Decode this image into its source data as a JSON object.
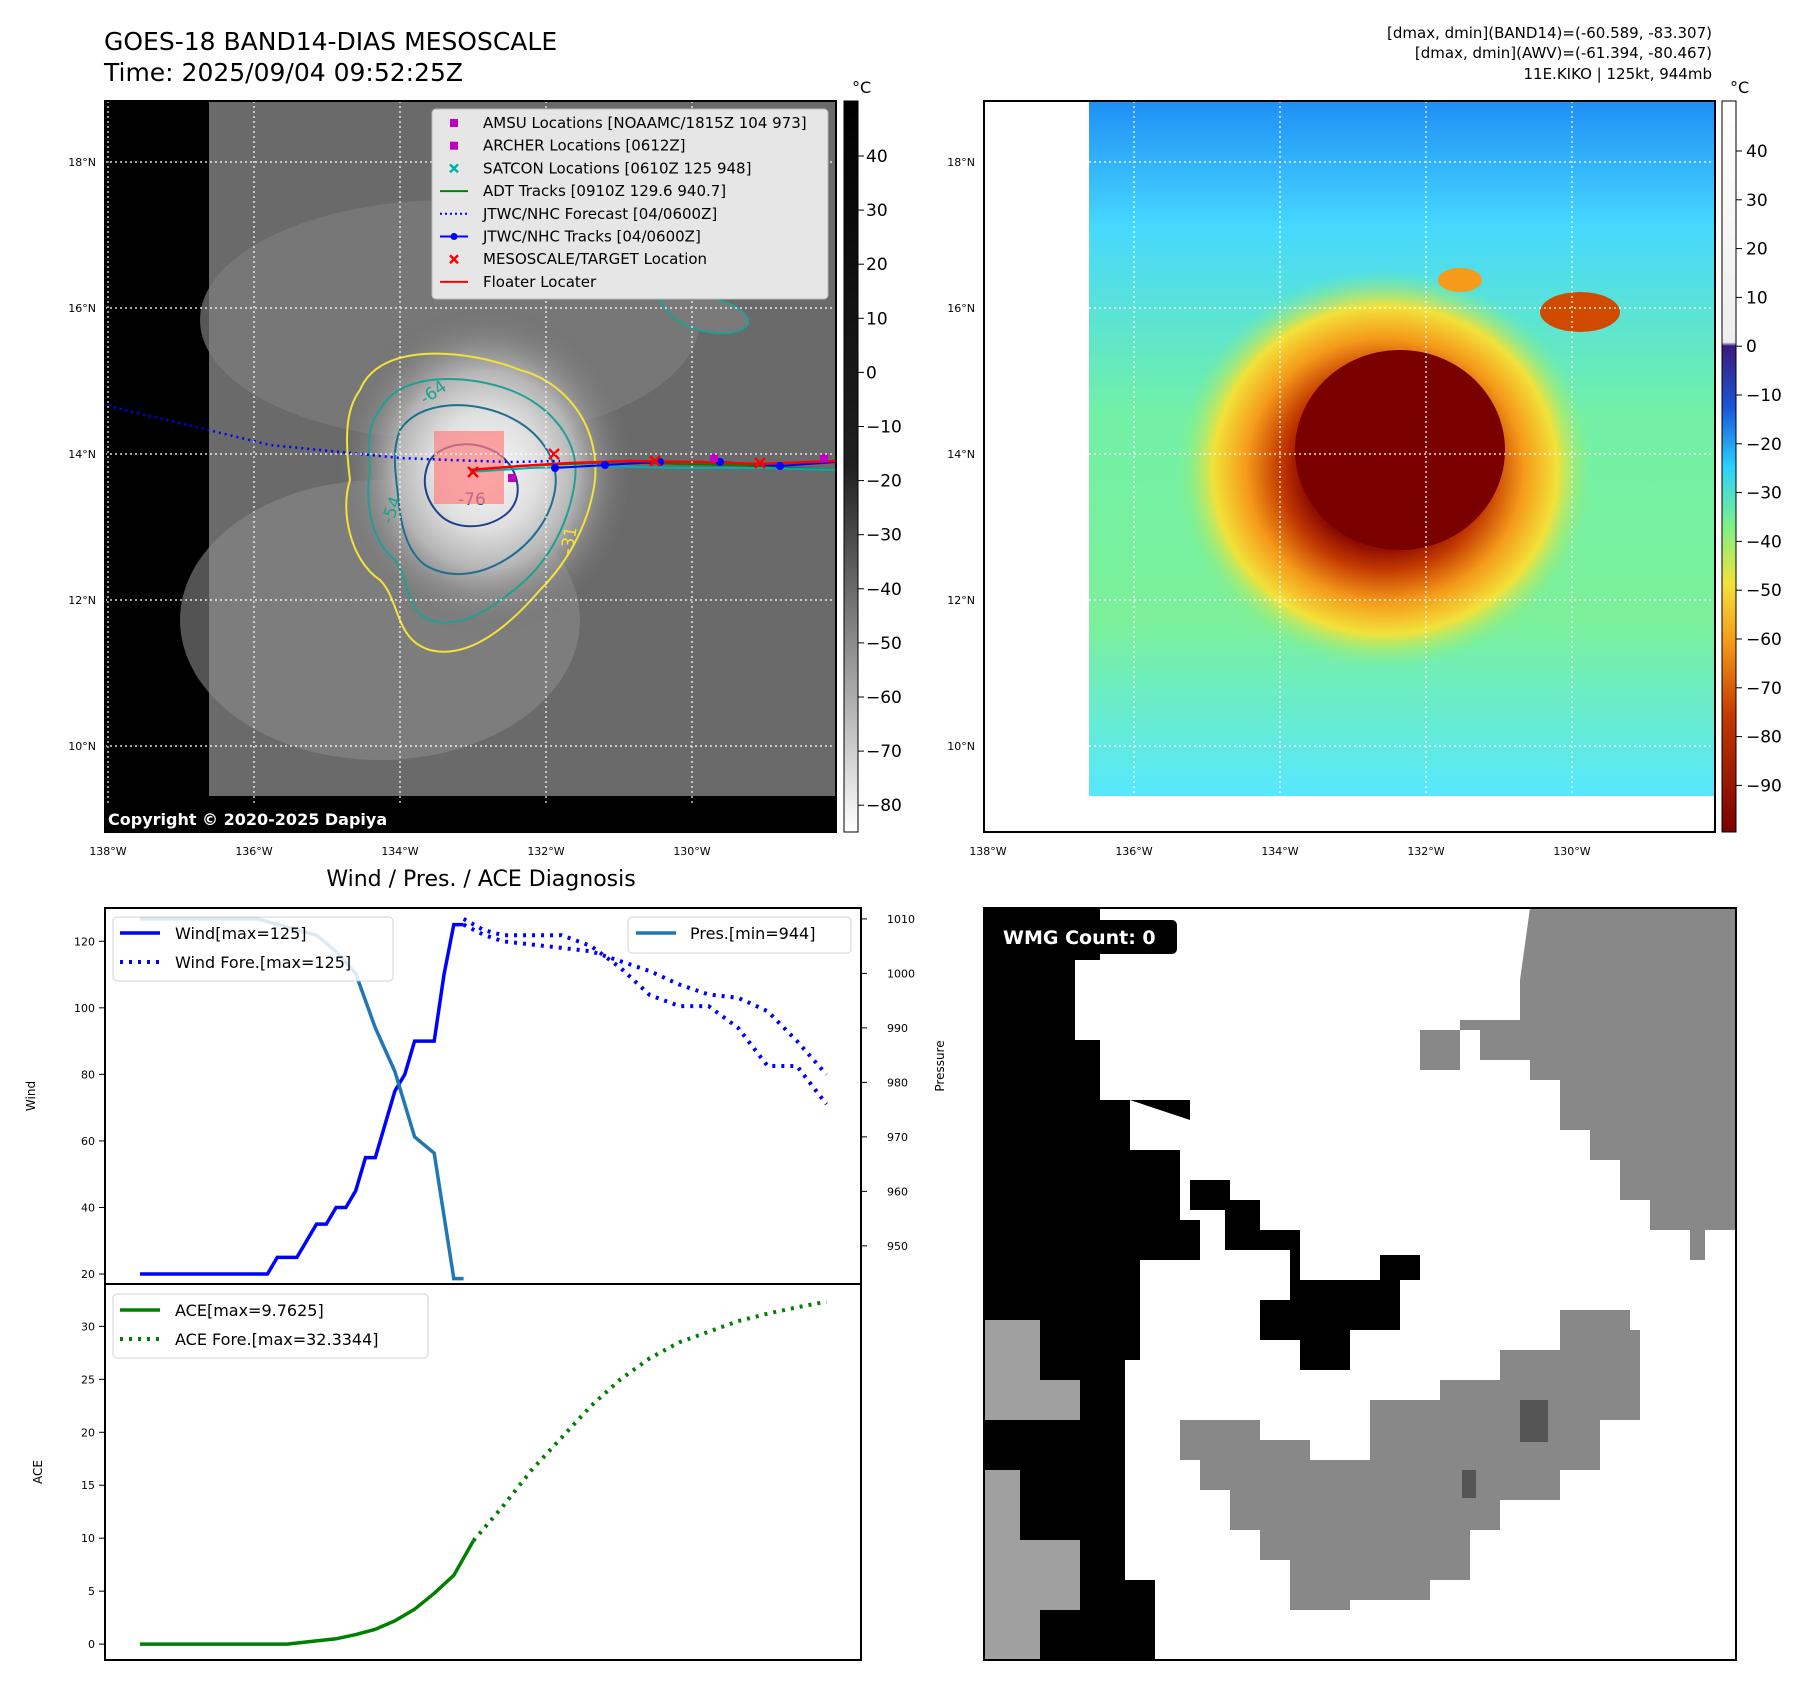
{
  "header": {
    "title_line1": "GOES-18 BAND14-DIAS MESOSCALE",
    "title_line2": "Time: 2025/09/04 09:52:25Z",
    "info_line1": "[dmax, dmin](BAND14)=(-60.589, -83.307)",
    "info_line2": "[dmax, dmin](AWV)=(-61.394, -80.467)",
    "info_line3": "11E.KIKO | 125kt, 944mb"
  },
  "map_left": {
    "lat_labels": [
      "18°N",
      "16°N",
      "14°N",
      "12°N",
      "10°N"
    ],
    "lon_labels": [
      "138°W",
      "136°W",
      "134°W",
      "132°W",
      "130°W"
    ],
    "copyright": "Copyright © 2020-2025 Dapiya",
    "contour_labels": [
      "-64",
      "-76",
      "-54",
      "-31"
    ],
    "legend": [
      {
        "label": "AMSU Locations [NOAAMC/1815Z 104 973]",
        "marker": "square",
        "color": "#c000c0"
      },
      {
        "label": "ARCHER Locations [0612Z]",
        "marker": "square",
        "color": "#c000c0"
      },
      {
        "label": "SATCON Locations [0610Z 125 948]",
        "marker": "x",
        "color": "#00b0b0"
      },
      {
        "label": "ADT Tracks [0910Z 129.6 940.7]",
        "marker": "line",
        "color": "#008000"
      },
      {
        "label": "JTWC/NHC Forecast [04/0600Z]",
        "marker": "dotted",
        "color": "#0000ff"
      },
      {
        "label": "JTWC/NHC Tracks [04/0600Z]",
        "marker": "line-dot",
        "color": "#0000ff"
      },
      {
        "label": "MESOSCALE/TARGET Location",
        "marker": "x",
        "color": "#ff0000"
      },
      {
        "label": "Floater Locater",
        "marker": "line",
        "color": "#ff0000"
      }
    ],
    "colorbar": {
      "unit": "°C",
      "ticks": [
        "40",
        "30",
        "20",
        "10",
        "0",
        "−10",
        "−20",
        "−30",
        "−40",
        "−50",
        "−60",
        "−70",
        "−80"
      ]
    }
  },
  "map_right": {
    "lat_labels": [
      "18°N",
      "16°N",
      "14°N",
      "12°N",
      "10°N"
    ],
    "lon_labels": [
      "138°W",
      "136°W",
      "134°W",
      "132°W",
      "130°W"
    ],
    "colorbar": {
      "unit": "°C",
      "ticks": [
        "40",
        "30",
        "20",
        "10",
        "0",
        "−10",
        "−20",
        "−30",
        "−40",
        "−50",
        "−60",
        "−70",
        "−80",
        "−90"
      ]
    }
  },
  "chart_data": [
    {
      "type": "line",
      "title": "Wind / Pres. / ACE Diagnosis",
      "ylabel": "Wind",
      "y2label": "Pressure",
      "ylim": [
        17,
        130
      ],
      "y2lim": [
        943,
        1012
      ],
      "yticks": [
        "120",
        "100",
        "80",
        "60",
        "40",
        "20"
      ],
      "y2ticks": [
        "1010",
        "1000",
        "990",
        "980",
        "970",
        "960",
        "950"
      ],
      "series": [
        {
          "name": "Wind[max=125]",
          "style": "solid",
          "color": "#0000ff",
          "axis": "left",
          "x": [
            0,
            1,
            2,
            3,
            4,
            5,
            6,
            7,
            8,
            9,
            10,
            11,
            12,
            13,
            14,
            15,
            16,
            17,
            18,
            19,
            20,
            21,
            22,
            23,
            24,
            25,
            26,
            27,
            28,
            29,
            30,
            31,
            32,
            33
          ],
          "values": [
            20,
            20,
            20,
            20,
            20,
            20,
            20,
            20,
            20,
            20,
            20,
            20,
            20,
            20,
            25,
            25,
            25,
            30,
            35,
            35,
            40,
            40,
            45,
            55,
            55,
            65,
            75,
            80,
            90,
            90,
            90,
            110,
            125,
            125
          ]
        },
        {
          "name": "Wind Fore.[max=125]",
          "style": "dotted",
          "color": "#0000ff",
          "axis": "left",
          "x": [
            33,
            35,
            37,
            40,
            43,
            46,
            49,
            52,
            55,
            58,
            61,
            64,
            67,
            70
          ],
          "values": [
            125,
            122,
            120,
            119,
            118,
            117,
            114,
            111,
            107,
            104,
            103,
            99,
            90,
            80
          ]
        },
        {
          "name": "Pres.[min=944]",
          "style": "solid",
          "color": "#1f77b4",
          "axis": "right",
          "x": [
            0,
            3,
            6,
            9,
            12,
            14,
            16,
            18,
            20,
            22,
            24,
            26,
            28,
            30,
            32,
            33
          ],
          "values": [
            1010,
            1010,
            1010,
            1010,
            1010,
            1009,
            1008,
            1007,
            1004,
            1000,
            990,
            982,
            970,
            967,
            944,
            944
          ]
        },
        {
          "name": "",
          "style": "dotted",
          "color": "#0000ff",
          "axis": "right",
          "x": [
            33,
            35,
            37,
            40,
            43,
            46,
            49,
            52,
            55,
            58,
            61,
            64,
            67,
            70
          ],
          "values": [
            1010,
            1008,
            1007,
            1007,
            1007,
            1005,
            1001,
            996,
            994,
            994,
            990,
            983,
            983,
            976
          ]
        }
      ]
    },
    {
      "type": "line",
      "ylabel": "ACE",
      "ylim": [
        -1.5,
        34
      ],
      "yticks": [
        "30",
        "25",
        "20",
        "15",
        "10",
        "5",
        "0"
      ],
      "series": [
        {
          "name": "ACE[max=9.7625]",
          "style": "solid",
          "color": "#008000",
          "x": [
            0,
            5,
            10,
            15,
            18,
            20,
            22,
            24,
            26,
            28,
            30,
            32,
            34
          ],
          "values": [
            0,
            0,
            0,
            0,
            0.3,
            0.5,
            0.9,
            1.4,
            2.2,
            3.3,
            4.8,
            6.5,
            9.76
          ]
        },
        {
          "name": "ACE Fore.[max=32.3344]",
          "style": "dotted",
          "color": "#008000",
          "x": [
            34,
            37,
            40,
            43,
            46,
            49,
            52,
            55,
            58,
            61,
            64,
            67,
            70
          ],
          "values": [
            9.76,
            13,
            16.5,
            19.5,
            22.5,
            25,
            27,
            28.5,
            29.5,
            30.5,
            31.2,
            31.8,
            32.33
          ]
        }
      ]
    }
  ],
  "wmg_panel": {
    "label": "WMG Count: 0"
  }
}
